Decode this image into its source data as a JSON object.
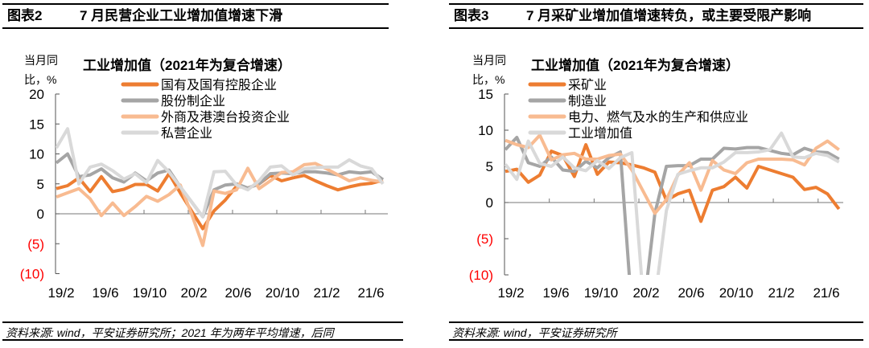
{
  "left": {
    "header_num": "图表2",
    "header_title": "7 月民营企业工业增加值增速下滑",
    "footer": "资料来源: wind，平安证券研究所；2021 年为两年平均增速，后同"
  },
  "right": {
    "header_num": "图表3",
    "header_title": "7 月采矿业增加值增速转负，或主要受限产影响",
    "footer": "资料来源: wind，平安证券研究所"
  },
  "chart_data": [
    {
      "type": "line",
      "title": "工业增加值（2021年为复合增速）",
      "ylabel": [
        "当月同",
        "比，%"
      ],
      "ylim": [
        -10,
        20
      ],
      "yticks": [
        20,
        15,
        10,
        5,
        0,
        -5,
        -10
      ],
      "ytick_labels": [
        "20",
        "15",
        "10",
        "5",
        "0",
        "(5)",
        "(10)"
      ],
      "negative_label_color": "#FF0000",
      "xtick_labels": [
        "19/2",
        "19/6",
        "19/10",
        "20/2",
        "20/6",
        "20/10",
        "21/2",
        "21/6"
      ],
      "x": [
        "19/2",
        "19/3",
        "19/4",
        "19/5",
        "19/6",
        "19/7",
        "19/8",
        "19/9",
        "19/10",
        "19/11",
        "19/12",
        "20/1",
        "20/2",
        "20/3",
        "20/4",
        "20/5",
        "20/6",
        "20/7",
        "20/8",
        "20/9",
        "20/10",
        "20/11",
        "20/12",
        "21/1",
        "21/2",
        "21/3",
        "21/4",
        "21/5",
        "21/6",
        "21/7"
      ],
      "legend_position": "top",
      "series": [
        {
          "name": "国有及国有控股企业",
          "color": "#ED7D31",
          "values": [
            4.2,
            4.7,
            6.0,
            3.7,
            6.2,
            3.7,
            4.1,
            4.9,
            4.9,
            3.8,
            6.7,
            3.5,
            0.5,
            -2.5,
            0.5,
            2.3,
            4.6,
            4.3,
            5.0,
            6.4,
            5.5,
            6.0,
            6.4,
            5.5,
            4.7,
            4.0,
            4.5,
            4.9,
            5.1,
            5.6
          ]
        },
        {
          "name": "股份制企业",
          "color": "#A5A5A5",
          "values": [
            8.5,
            10.0,
            6.2,
            6.5,
            7.5,
            6.0,
            5.3,
            6.8,
            5.5,
            6.8,
            7.3,
            4.5,
            2.0,
            -0.5,
            4.0,
            4.8,
            5.0,
            4.3,
            5.0,
            6.7,
            6.8,
            6.7,
            7.0,
            7.0,
            6.8,
            6.5,
            7.0,
            6.8,
            7.0,
            5.7
          ]
        },
        {
          "name": "外商及港澳台投资企业",
          "color": "#F8BB91",
          "values": [
            2.8,
            3.5,
            4.2,
            2.5,
            -0.3,
            1.8,
            -0.3,
            1.2,
            2.9,
            2.1,
            3.2,
            4.8,
            0.0,
            -5.3,
            3.8,
            3.4,
            4.0,
            7.6,
            4.2,
            5.5,
            6.9,
            7.0,
            8.2,
            8.4,
            7.5,
            6.5,
            5.5,
            6.0,
            5.6,
            5.3
          ]
        },
        {
          "name": "私营企业",
          "color": "#D9D9D9",
          "values": [
            11.0,
            14.2,
            5.0,
            7.8,
            8.3,
            7.2,
            5.8,
            6.7,
            5.2,
            8.9,
            7.0,
            4.5,
            2.0,
            -0.5,
            7.0,
            7.1,
            4.8,
            4.0,
            5.5,
            7.8,
            8.0,
            6.5,
            7.5,
            7.7,
            7.8,
            7.8,
            9.0,
            8.0,
            7.5,
            5.0
          ]
        }
      ]
    },
    {
      "type": "line",
      "title": "工业增加值（2021年为复合增速）",
      "ylabel": [
        "当月同",
        "比，%"
      ],
      "ylim": [
        -10,
        15
      ],
      "yticks": [
        15,
        10,
        5,
        0,
        -5,
        -10
      ],
      "ytick_labels": [
        "15",
        "10",
        "5",
        "0",
        "(5)",
        "(10)"
      ],
      "negative_label_color": "#FF0000",
      "xtick_labels": [
        "19/2",
        "19/6",
        "19/10",
        "20/2",
        "20/6",
        "20/10",
        "21/2",
        "21/6"
      ],
      "x": [
        "19/2",
        "19/3",
        "19/4",
        "19/5",
        "19/6",
        "19/7",
        "19/8",
        "19/9",
        "19/10",
        "19/11",
        "19/12",
        "20/1",
        "20/2",
        "20/3",
        "20/4",
        "20/5",
        "20/6",
        "20/7",
        "20/8",
        "20/9",
        "20/10",
        "20/11",
        "20/12",
        "21/1",
        "21/2",
        "21/3",
        "21/4",
        "21/5",
        "21/6",
        "21/7"
      ],
      "legend_position": "top",
      "series": [
        {
          "name": "采矿业",
          "color": "#ED7D31",
          "values": [
            4.3,
            4.6,
            2.8,
            3.8,
            7.1,
            6.5,
            3.6,
            8.0,
            3.9,
            5.6,
            5.5,
            5.2,
            4.8,
            4.2,
            0.3,
            1.2,
            1.7,
            -2.6,
            1.7,
            2.2,
            3.5,
            2.0,
            5.0,
            4.5,
            4.0,
            3.5,
            1.8,
            2.1,
            1.2,
            -0.9
          ]
        },
        {
          "name": "制造业",
          "color": "#A5A5A5",
          "values": [
            7.3,
            9.0,
            5.5,
            5.0,
            6.3,
            4.5,
            4.3,
            5.7,
            4.8,
            6.2,
            7.0,
            -15.0,
            -15.0,
            -1.5,
            5.0,
            5.1,
            5.1,
            6.0,
            6.0,
            7.5,
            7.4,
            7.6,
            7.6,
            7.2,
            6.8,
            6.6,
            7.5,
            7.0,
            6.9,
            6.0
          ]
        },
        {
          "name": "电力、燃气及水的生产和供应业",
          "color": "#F8BB91",
          "values": [
            8.6,
            8.0,
            7.6,
            9.3,
            5.9,
            6.6,
            6.8,
            6.0,
            6.0,
            6.5,
            6.7,
            4.5,
            1.5,
            -1.5,
            0.4,
            3.8,
            5.5,
            1.7,
            5.8,
            4.5,
            4.0,
            5.5,
            6.0,
            6.0,
            6.0,
            5.9,
            5.2,
            7.5,
            8.5,
            7.3
          ]
        },
        {
          "name": "工业增加值",
          "color": "#D9D9D9",
          "values": [
            5.3,
            3.2,
            8.5,
            5.4,
            5.0,
            6.3,
            4.8,
            4.4,
            5.8,
            4.7,
            6.2,
            6.9,
            -13.5,
            -13.5,
            -1.1,
            3.9,
            4.4,
            4.8,
            4.8,
            5.6,
            6.9,
            6.9,
            7.0,
            7.3,
            9.6,
            6.3,
            6.2,
            6.8,
            6.5,
            5.6
          ]
        }
      ]
    }
  ]
}
